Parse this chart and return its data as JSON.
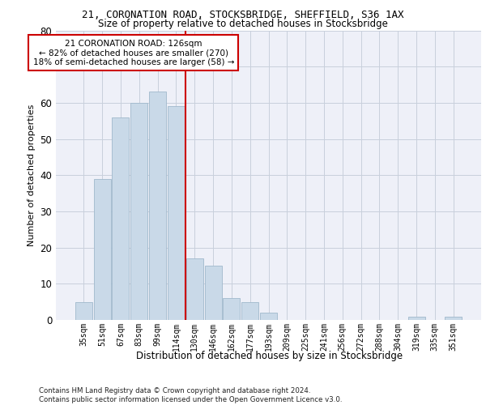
{
  "title1": "21, CORONATION ROAD, STOCKSBRIDGE, SHEFFIELD, S36 1AX",
  "title2": "Size of property relative to detached houses in Stocksbridge",
  "xlabel": "Distribution of detached houses by size in Stocksbridge",
  "ylabel": "Number of detached properties",
  "categories": [
    "35sqm",
    "51sqm",
    "67sqm",
    "83sqm",
    "99sqm",
    "114sqm",
    "130sqm",
    "146sqm",
    "162sqm",
    "177sqm",
    "193sqm",
    "209sqm",
    "225sqm",
    "241sqm",
    "256sqm",
    "272sqm",
    "288sqm",
    "304sqm",
    "319sqm",
    "335sqm",
    "351sqm"
  ],
  "values": [
    5,
    39,
    56,
    60,
    63,
    59,
    17,
    15,
    6,
    5,
    2,
    0,
    0,
    0,
    0,
    0,
    0,
    0,
    1,
    0,
    1
  ],
  "bar_color": "#c9d9e8",
  "bar_edge_color": "#a0b8cc",
  "grid_color": "#c8d0dc",
  "bg_color": "#eef0f8",
  "vline_color": "#cc0000",
  "vline_pos": 5.5,
  "annotation_text": "21 CORONATION ROAD: 126sqm\n← 82% of detached houses are smaller (270)\n18% of semi-detached houses are larger (58) →",
  "annotation_box_color": "#ffffff",
  "annotation_box_edge": "#cc0000",
  "ylim": [
    0,
    80
  ],
  "yticks": [
    0,
    10,
    20,
    30,
    40,
    50,
    60,
    70,
    80
  ],
  "footnote": "Contains HM Land Registry data © Crown copyright and database right 2024.\nContains public sector information licensed under the Open Government Licence v3.0."
}
